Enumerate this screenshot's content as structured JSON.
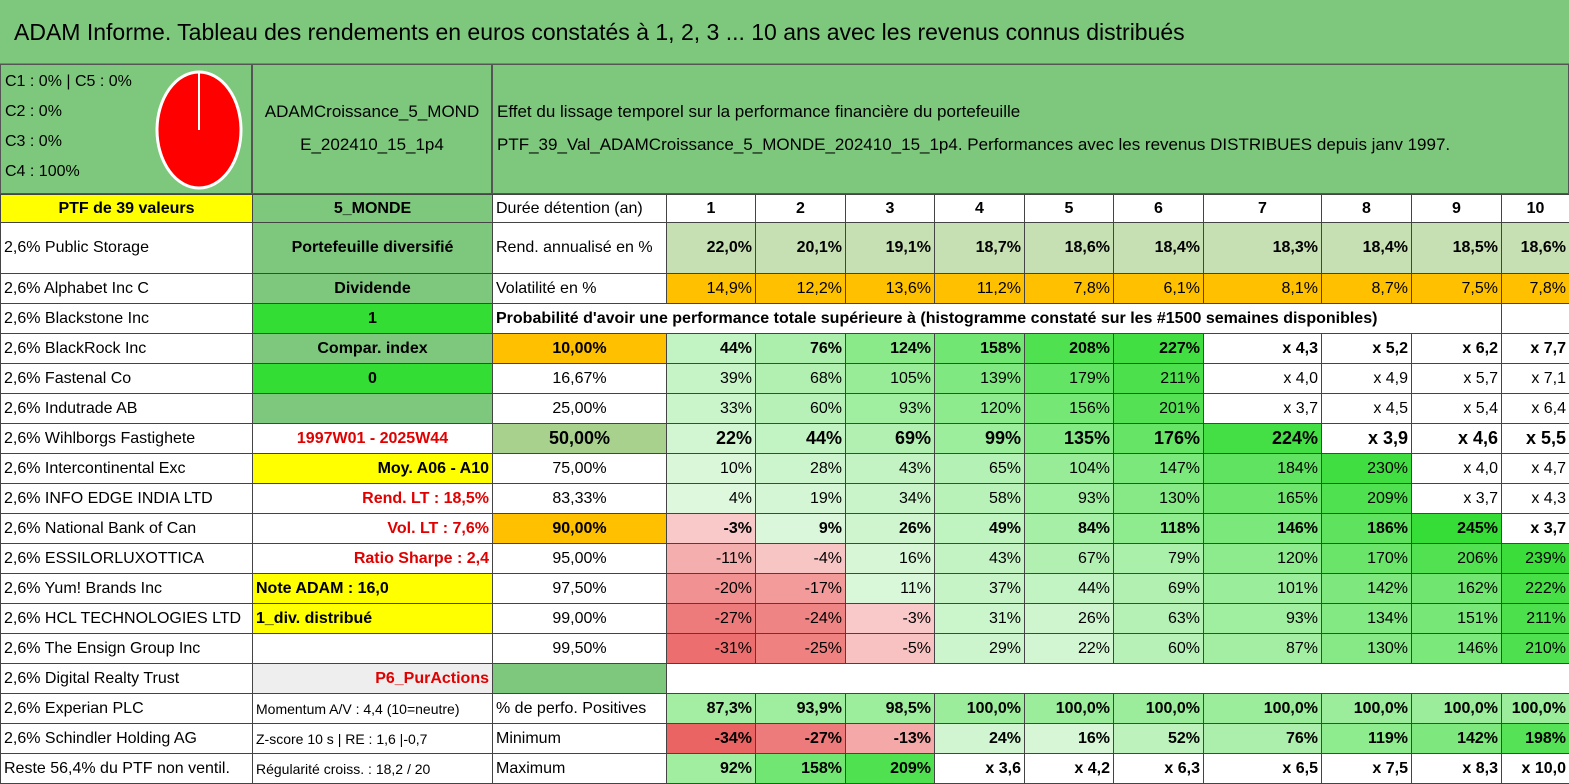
{
  "title": "ADAM Informe. Tableau des rendements en euros constatés à 1, 2, 3 ... 10 ans avec les revenus connus distribués",
  "left_panel": {
    "lines": [
      "C1 : 0% | C5 : 0%",
      "C2 : 0%",
      "C3 : 0%",
      "C4 : 100%"
    ],
    "pie_color": "#ff0000"
  },
  "mid_panel": {
    "line1": "ADAMCroissance_5_MOND",
    "line2": "E_202410_15_1p4"
  },
  "right_panel": {
    "line1": "Effet du lissage temporel sur la performance financière du portefeuille",
    "line2": "PTF_39_Val_ADAMCroissance_5_MONDE_202410_15_1p4. Performances avec les revenus DISTRIBUES depuis janv 1997."
  },
  "rows": [
    {
      "a": "PTF de 39 valeurs",
      "b": "5_MONDE",
      "c": "Durée détention (an)",
      "v": [
        "1",
        "2",
        "3",
        "4",
        "5",
        "6",
        "7",
        "8",
        "9",
        "10"
      ]
    },
    {
      "a": "2,6% Public Storage",
      "b": "Portefeuille diversifié",
      "c": "Rend. annualisé en %",
      "v": [
        "22,0%",
        "20,1%",
        "19,1%",
        "18,7%",
        "18,6%",
        "18,4%",
        "18,3%",
        "18,4%",
        "18,5%",
        "18,6%"
      ]
    },
    {
      "a": "2,6% Alphabet Inc C",
      "b": "Dividende",
      "c": "Volatilité en %",
      "v": [
        "14,9%",
        "12,2%",
        "13,6%",
        "11,2%",
        "7,8%",
        "6,1%",
        "8,1%",
        "8,7%",
        "7,5%",
        "7,8%"
      ]
    },
    {
      "a": "2,6% Blackstone Inc",
      "b": "1",
      "c": "Probabilité d'avoir une performance totale supérieure à (histogramme constaté sur les #1500 semaines disponibles)",
      "v": []
    },
    {
      "a": "2,6% BlackRock Inc",
      "b": "Compar. index",
      "c": "10,00%",
      "v": [
        "44%",
        "76%",
        "124%",
        "158%",
        "208%",
        "227%",
        "x 4,3",
        "x 5,2",
        "x 6,2",
        "x 7,7"
      ]
    },
    {
      "a": "2,6% Fastenal Co",
      "b": "0",
      "c": "16,67%",
      "v": [
        "39%",
        "68%",
        "105%",
        "139%",
        "179%",
        "211%",
        "x 4,0",
        "x 4,9",
        "x 5,7",
        "x 7,1"
      ]
    },
    {
      "a": "2,6% Indutrade AB",
      "b": "",
      "c": "25,00%",
      "v": [
        "33%",
        "60%",
        "93%",
        "120%",
        "156%",
        "201%",
        "x 3,7",
        "x 4,5",
        "x 5,4",
        "x 6,4"
      ]
    },
    {
      "a": "2,6% Wihlborgs Fastighete",
      "b": "1997W01 - 2025W44",
      "c": "50,00%",
      "v": [
        "22%",
        "44%",
        "69%",
        "99%",
        "135%",
        "176%",
        "224%",
        "x 3,9",
        "x 4,6",
        "x 5,5"
      ]
    },
    {
      "a": "2,6% Intercontinental Exc",
      "b": "Moy. A06 - A10",
      "c": "75,00%",
      "v": [
        "10%",
        "28%",
        "43%",
        "65%",
        "104%",
        "147%",
        "184%",
        "230%",
        "x 4,0",
        "x 4,7"
      ]
    },
    {
      "a": "2,6% INFO EDGE INDIA LTD",
      "b": "Rend. LT : 18,5%",
      "c": "83,33%",
      "v": [
        "4%",
        "19%",
        "34%",
        "58%",
        "93%",
        "130%",
        "165%",
        "209%",
        "x 3,7",
        "x 4,3"
      ]
    },
    {
      "a": "2,6% National Bank of Can",
      "b": "Vol. LT : 7,6%",
      "c": "90,00%",
      "v": [
        "-3%",
        "9%",
        "26%",
        "49%",
        "84%",
        "118%",
        "146%",
        "186%",
        "245%",
        "x 3,7"
      ]
    },
    {
      "a": "2,6% ESSILORLUXOTTICA",
      "b": "Ratio Sharpe : 2,4",
      "c": "95,00%",
      "v": [
        "-11%",
        "-4%",
        "16%",
        "43%",
        "67%",
        "79%",
        "120%",
        "170%",
        "206%",
        "239%"
      ]
    },
    {
      "a": "2,6% Yum! Brands Inc",
      "b": "Note ADAM : 16,0",
      "c": "97,50%",
      "v": [
        "-20%",
        "-17%",
        "11%",
        "37%",
        "44%",
        "69%",
        "101%",
        "142%",
        "162%",
        "222%"
      ]
    },
    {
      "a": "2,6% HCL TECHNOLOGIES LTD",
      "b": "1_div. distribué",
      "c": "99,00%",
      "v": [
        "-27%",
        "-24%",
        "-3%",
        "31%",
        "26%",
        "63%",
        "93%",
        "134%",
        "151%",
        "211%"
      ]
    },
    {
      "a": "2,6% The Ensign Group Inc",
      "b": "",
      "c": "99,50%",
      "v": [
        "-31%",
        "-25%",
        "-5%",
        "29%",
        "22%",
        "60%",
        "87%",
        "130%",
        "146%",
        "210%"
      ]
    },
    {
      "a": "2,6% Digital Realty Trust",
      "b": "P6_PurActions",
      "c": "",
      "v": []
    },
    {
      "a": "2,6% Experian PLC",
      "b": "Momentum A/V : 4,4 (10=neutre)",
      "c": "% de perfo. Positives",
      "v": [
        "87,3%",
        "93,9%",
        "98,5%",
        "100,0%",
        "100,0%",
        "100,0%",
        "100,0%",
        "100,0%",
        "100,0%",
        "100,0%"
      ]
    },
    {
      "a": "2,6% Schindler Holding AG",
      "b": "Z-score 10 s | RE : 1,6 |-0,7",
      "c": "Minimum",
      "v": [
        "-34%",
        "-27%",
        "-13%",
        "24%",
        "16%",
        "52%",
        "76%",
        "119%",
        "142%",
        "198%"
      ]
    },
    {
      "a": "Reste 56,4% du PTF non ventil.",
      "b": "Régularité croiss. : 18,2 / 20",
      "c": "Maximum",
      "v": [
        "92%",
        "158%",
        "209%",
        "x 3,6",
        "x 4,2",
        "x 6,3",
        "x 6,5",
        "x 7,5",
        "x 8,3",
        "x 10,0"
      ]
    }
  ]
}
